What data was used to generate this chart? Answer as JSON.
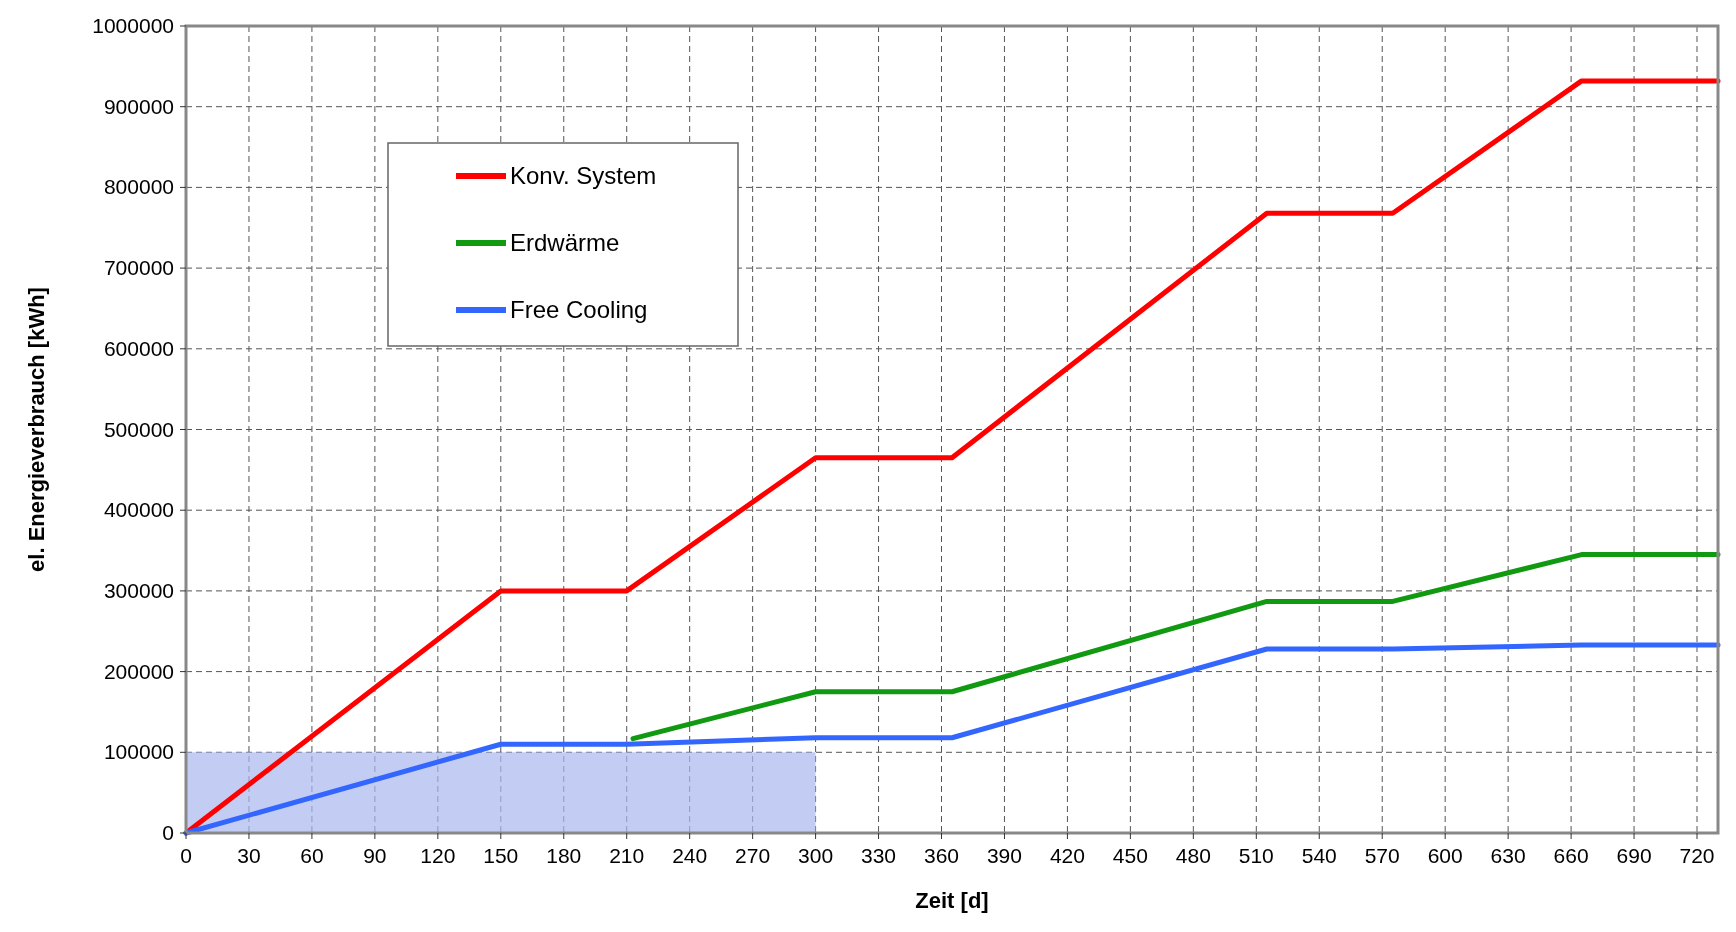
{
  "chart_data": {
    "type": "line",
    "xlabel": "Zeit [d]",
    "ylabel": "el. Energieverbrauch [kWh]",
    "xlim": [
      0,
      730
    ],
    "xticks": [
      0,
      30,
      60,
      90,
      120,
      150,
      180,
      210,
      240,
      270,
      300,
      330,
      360,
      390,
      420,
      450,
      480,
      510,
      540,
      570,
      600,
      630,
      660,
      690,
      720
    ],
    "ylim": [
      0,
      1000000
    ],
    "yticks": [
      0,
      100000,
      200000,
      300000,
      400000,
      500000,
      600000,
      700000,
      800000,
      900000,
      1000000
    ],
    "grid": true,
    "legend": "top left",
    "line_style": "solid",
    "series": [
      {
        "type": "area",
        "color": "#a9b8f0",
        "x": [
          0,
          300
        ],
        "values": [
          100000,
          100000
        ]
      },
      {
        "name": "Konv. System",
        "color": "#ff0000",
        "x": [
          0,
          150,
          210,
          300,
          365,
          515,
          575,
          665,
          730
        ],
        "values": [
          0,
          300000,
          300000,
          465000,
          465000,
          768000,
          768000,
          932000,
          932000
        ]
      },
      {
        "name": "Erdwärme",
        "color": "#119911",
        "x": [
          213,
          300,
          365,
          515,
          575,
          665,
          730
        ],
        "values": [
          117000,
          175000,
          175000,
          287000,
          287000,
          345000,
          345000
        ]
      },
      {
        "name": "Free Cooling",
        "color": "#3366ff",
        "x": [
          0,
          150,
          210,
          300,
          365,
          515,
          575,
          665,
          730
        ],
        "values": [
          0,
          110000,
          110000,
          118000,
          118000,
          228000,
          228000,
          233000,
          233000
        ]
      }
    ]
  }
}
